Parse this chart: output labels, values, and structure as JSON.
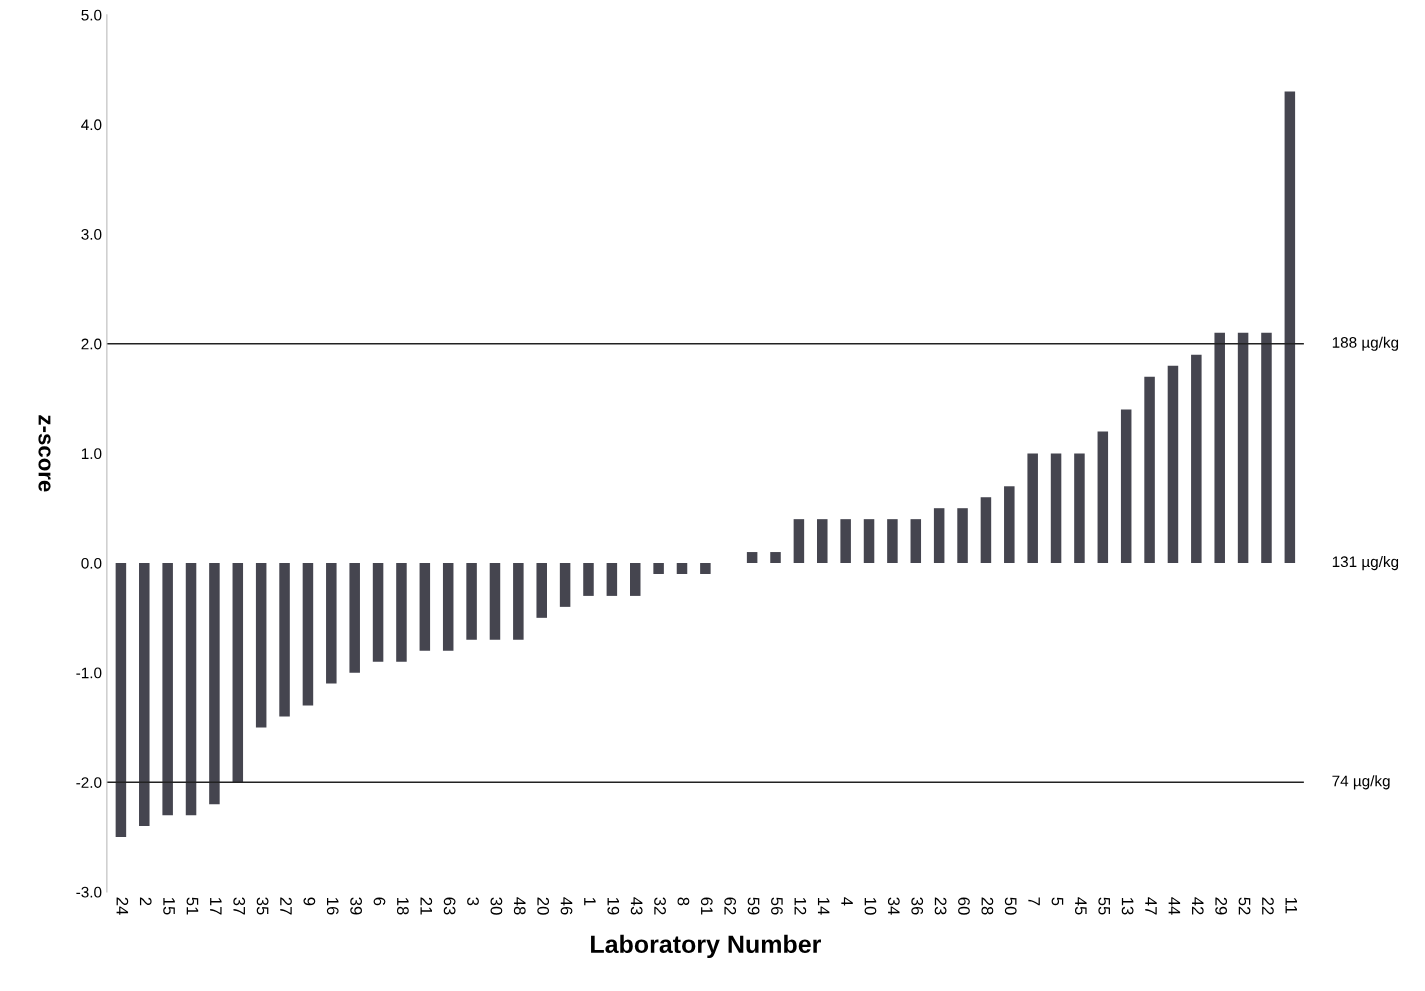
{
  "chart_data": {
    "type": "bar",
    "xlabel": "Laboratory Number",
    "ylabel": "z-score",
    "categories": [
      "24",
      "2",
      "15",
      "51",
      "17",
      "37",
      "35",
      "27",
      "9",
      "16",
      "39",
      "6",
      "18",
      "21",
      "63",
      "3",
      "30",
      "48",
      "20",
      "46",
      "1",
      "19",
      "43",
      "32",
      "8",
      "61",
      "62",
      "59",
      "56",
      "12",
      "14",
      "4",
      "10",
      "34",
      "36",
      "23",
      "60",
      "28",
      "50",
      "7",
      "5",
      "45",
      "55",
      "13",
      "47",
      "44",
      "42",
      "29",
      "52",
      "22",
      "11"
    ],
    "values": [
      -2.5,
      -2.4,
      -2.3,
      -2.3,
      -2.2,
      -2.0,
      -1.5,
      -1.4,
      -1.3,
      -1.1,
      -1.0,
      -0.9,
      -0.9,
      -0.8,
      -0.8,
      -0.7,
      -0.7,
      -0.7,
      -0.5,
      -0.4,
      -0.3,
      -0.3,
      -0.3,
      -0.1,
      -0.1,
      -0.1,
      0,
      0.1,
      0.1,
      0.4,
      0.4,
      0.4,
      0.4,
      0.4,
      0.4,
      0.5,
      0.5,
      0.6,
      0.7,
      1.0,
      1.0,
      1.0,
      1.2,
      1.4,
      1.7,
      1.8,
      1.9,
      2.1,
      2.1,
      2.1,
      4.3
    ],
    "color": "#45454f",
    "ylim": [
      -3.0,
      5.0
    ],
    "yticks": [
      {
        "value": -3,
        "label": "-3.0"
      },
      {
        "value": -2,
        "label": "-2.0"
      },
      {
        "value": -1,
        "label": "-1.0"
      },
      {
        "value": 0,
        "label": "0.0"
      },
      {
        "value": 1,
        "label": "1.0"
      },
      {
        "value": 2,
        "label": "2.0"
      },
      {
        "value": 3,
        "label": "3.0"
      },
      {
        "value": 4,
        "label": "4.0"
      },
      {
        "value": 5,
        "label": "5.0"
      }
    ],
    "ref_lines": [
      {
        "axis": "y",
        "value": 2,
        "label": "188 µg/kg",
        "color": "#222222",
        "line_style": "solid"
      },
      {
        "axis": "y",
        "value": -2,
        "label": "74 µg/kg",
        "color": "#222222",
        "line_style": "solid"
      }
    ],
    "annotations": [
      "131 µg/kg"
    ],
    "grid": false
  }
}
